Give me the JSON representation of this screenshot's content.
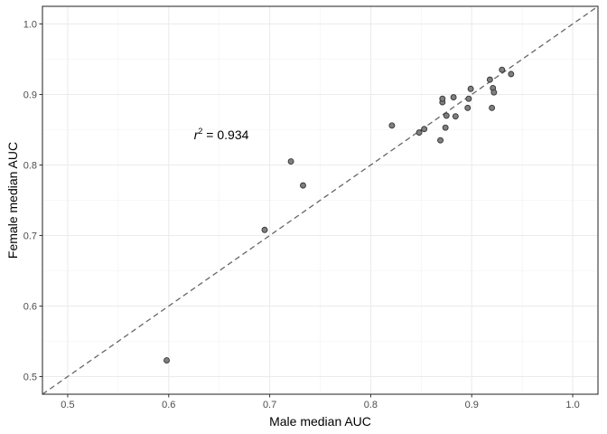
{
  "chart_data": {
    "type": "scatter",
    "title": "",
    "xlabel": "Male median AUC",
    "ylabel": "Female median AUC",
    "xlim": [
      0.475,
      1.025
    ],
    "ylim": [
      0.475,
      1.025
    ],
    "x_ticks": [
      0.5,
      0.6,
      0.7,
      0.8,
      0.9,
      1.0
    ],
    "y_ticks": [
      0.5,
      0.6,
      0.7,
      0.8,
      0.9,
      1.0
    ],
    "x_tick_labels": [
      "0.5",
      "0.6",
      "0.7",
      "0.8",
      "0.9",
      "1.0"
    ],
    "y_tick_labels": [
      "0.5",
      "0.6",
      "0.7",
      "0.8",
      "0.9",
      "1.0"
    ],
    "grid": true,
    "reference_line": {
      "type": "identity",
      "style": "dashed",
      "color": "#666666"
    },
    "annotation": {
      "r_symbol": "r",
      "superscript": "2",
      "text": " = 0.934",
      "x": 0.625,
      "y": 0.843
    },
    "point_fill": "#7f7f7f",
    "point_stroke": "#333333",
    "points": [
      {
        "x": 0.598,
        "y": 0.523
      },
      {
        "x": 0.695,
        "y": 0.708
      },
      {
        "x": 0.721,
        "y": 0.805
      },
      {
        "x": 0.733,
        "y": 0.771
      },
      {
        "x": 0.821,
        "y": 0.856
      },
      {
        "x": 0.848,
        "y": 0.846
      },
      {
        "x": 0.853,
        "y": 0.851
      },
      {
        "x": 0.869,
        "y": 0.835
      },
      {
        "x": 0.871,
        "y": 0.889
      },
      {
        "x": 0.871,
        "y": 0.894
      },
      {
        "x": 0.874,
        "y": 0.853
      },
      {
        "x": 0.875,
        "y": 0.87
      },
      {
        "x": 0.882,
        "y": 0.896
      },
      {
        "x": 0.884,
        "y": 0.869
      },
      {
        "x": 0.896,
        "y": 0.881
      },
      {
        "x": 0.897,
        "y": 0.894
      },
      {
        "x": 0.899,
        "y": 0.908
      },
      {
        "x": 0.918,
        "y": 0.921
      },
      {
        "x": 0.92,
        "y": 0.881
      },
      {
        "x": 0.921,
        "y": 0.909
      },
      {
        "x": 0.922,
        "y": 0.903
      },
      {
        "x": 0.93,
        "y": 0.935
      },
      {
        "x": 0.939,
        "y": 0.929
      }
    ]
  }
}
